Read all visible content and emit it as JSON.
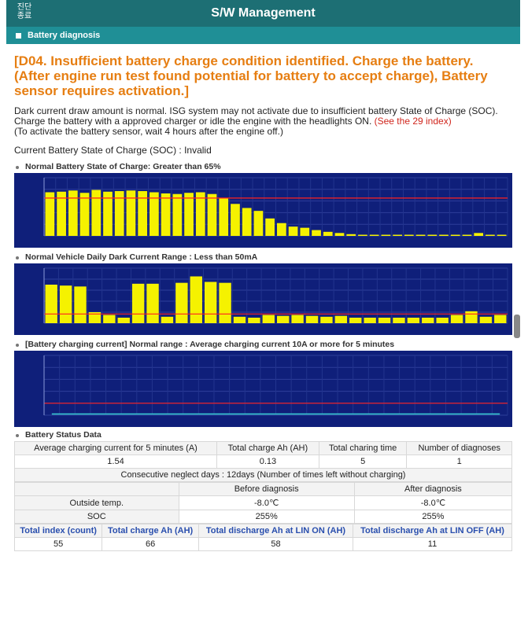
{
  "header": {
    "exit_label": "진단 종료",
    "title": "S/W Management"
  },
  "section": {
    "label": "Battery diagnosis"
  },
  "alert": "[D04. Insufficient battery charge condition identified. Charge the battery. (After engine run test found potential for battery to accept charge), Battery sensor requires activation.]",
  "desc": {
    "line1": "Dark current draw amount is normal. ISG system may not activate due to insufficient battery State of Charge (SOC).",
    "line2": "Charge the battery with a approved charger or idle the engine with the headlights ON.",
    "link": "(See the 29 index)",
    "line3": "(To activate the battery sensor, wait 4 hours after the engine off.)"
  },
  "soc_status": "Current Battery State of Charge (SOC) : Invalid",
  "chart_data": [
    {
      "type": "bar",
      "title": "Normal Battery State of Charge: Greater than 65%",
      "ylim": [
        0,
        100
      ],
      "threshold": 65,
      "values": [
        75,
        76,
        78,
        74,
        79,
        76,
        77,
        78,
        77,
        75,
        73,
        72,
        74,
        75,
        72,
        65,
        55,
        48,
        43,
        30,
        22,
        16,
        14,
        10,
        7,
        5,
        3,
        2,
        2,
        2,
        2,
        2,
        2,
        2,
        2,
        2,
        2,
        5,
        2,
        2
      ]
    },
    {
      "type": "bar",
      "title": "Normal Vehicle Daily Dark Current Range : Less than 50mA",
      "ylim": [
        0,
        300
      ],
      "threshold": 50,
      "values": [
        210,
        205,
        200,
        60,
        45,
        30,
        215,
        215,
        35,
        220,
        255,
        225,
        220,
        35,
        30,
        45,
        40,
        45,
        40,
        35,
        40,
        30,
        30,
        30,
        30,
        30,
        30,
        30,
        45,
        65,
        35,
        45
      ]
    },
    {
      "type": "line",
      "title": "[Battery charging current] Normal range : Average charging current 10A or more for 5 minutes",
      "ylim": [
        0,
        50
      ],
      "threshold": 10,
      "values": [
        1,
        1,
        1,
        1,
        1,
        1,
        1,
        1,
        1,
        1,
        1,
        1,
        1,
        1,
        1,
        1,
        1,
        1,
        1,
        1,
        1,
        1,
        1,
        1,
        1,
        1,
        1,
        1,
        1,
        1
      ]
    }
  ],
  "status_title": "Battery Status Data",
  "table1": {
    "headers": [
      "Average charging current for 5 minutes (A)",
      "Total charge Ah (AH)",
      "Total charing time",
      "Number of diagnoses"
    ],
    "values": [
      "1.54",
      "0.13",
      "5",
      "1"
    ]
  },
  "neglect": "Consecutive neglect days : 12days (Number of times left without charging)",
  "table2": {
    "headers": [
      "",
      "Before diagnosis",
      "After diagnosis"
    ],
    "rows": [
      [
        "Outside temp.",
        "-8.0℃",
        "-8.0℃"
      ],
      [
        "SOC",
        "255%",
        "255%"
      ]
    ]
  },
  "table3": {
    "headers": [
      "Total index (count)",
      "Total charge Ah (AH)",
      "Total discharge Ah at LIN ON (AH)",
      "Total discharge Ah at LIN OFF (AH)"
    ],
    "values": [
      "55",
      "66",
      "58",
      "11"
    ]
  },
  "colors": {
    "header": "#1d6f74",
    "section": "#1f8f96",
    "alert": "#e67e12",
    "chart_bg": "#0f1f7a",
    "bar": "#f5f200",
    "threshold": "#ff2020"
  }
}
